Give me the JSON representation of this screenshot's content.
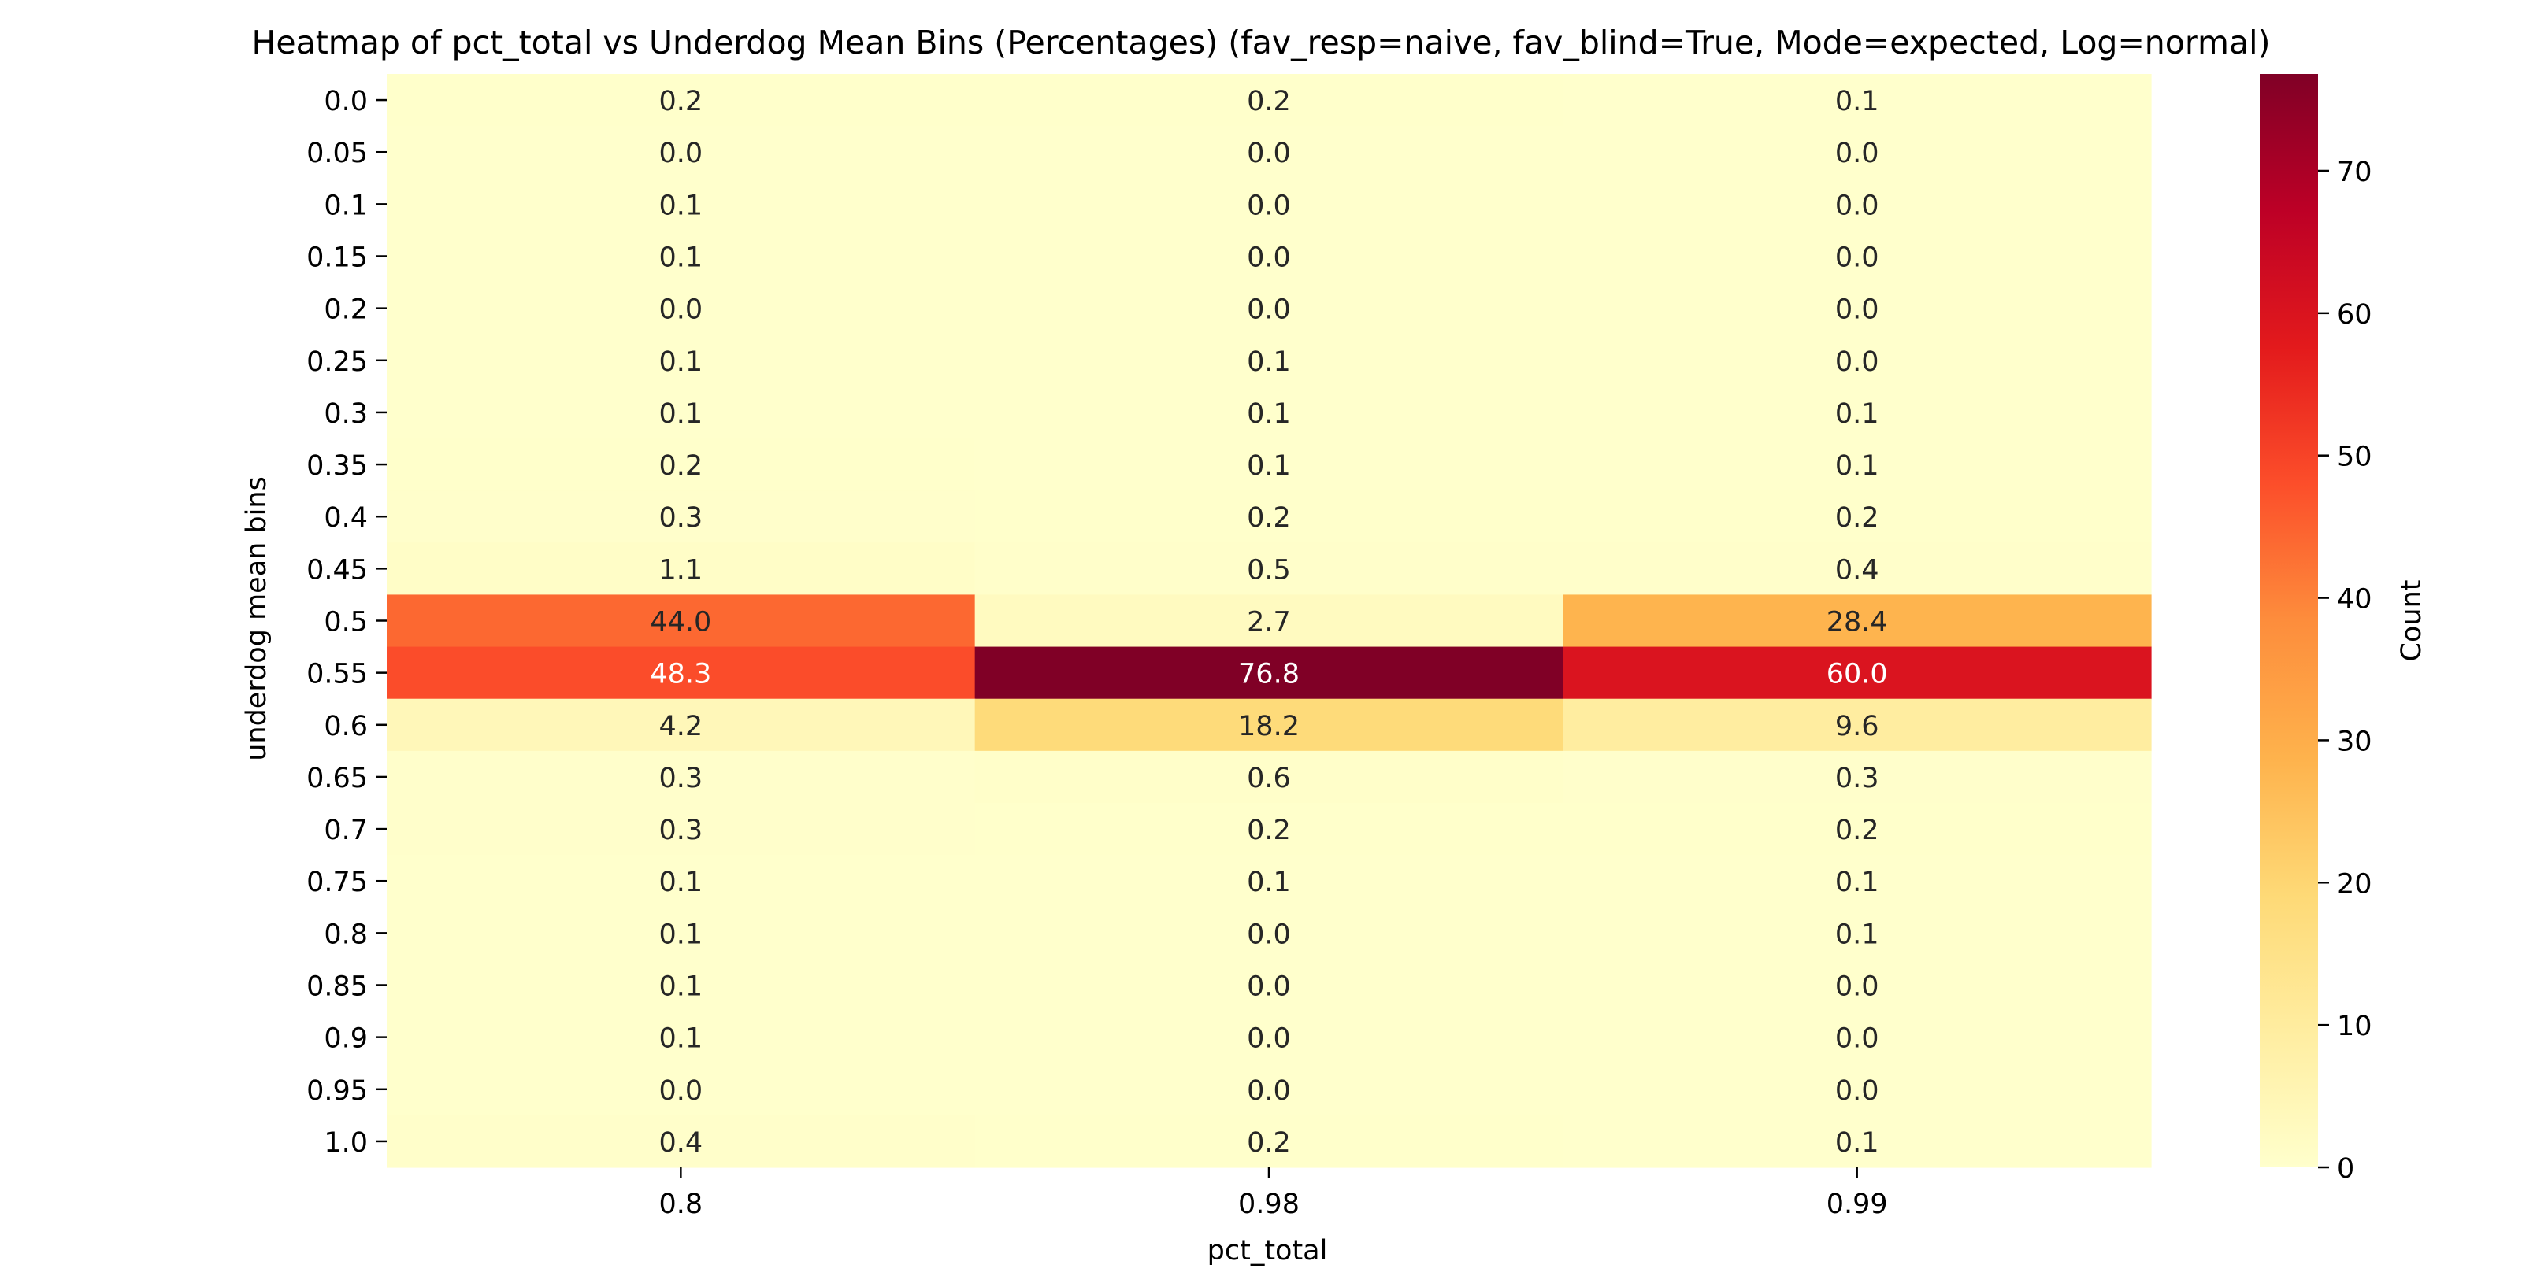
{
  "chart_data": {
    "type": "heatmap",
    "title": "Heatmap of pct_total vs Underdog Mean Bins (Percentages)  (fav_resp=naive, fav_blind=True, Mode=expected, Log=normal)",
    "xlabel": "pct_total",
    "ylabel": "underdog mean bins",
    "x_categories": [
      "0.8",
      "0.98",
      "0.99"
    ],
    "y_categories": [
      "0.0",
      "0.05",
      "0.1",
      "0.15",
      "0.2",
      "0.25",
      "0.3",
      "0.35",
      "0.4",
      "0.45",
      "0.5",
      "0.55",
      "0.6",
      "0.65",
      "0.7",
      "0.75",
      "0.8",
      "0.85",
      "0.9",
      "0.95",
      "1.0"
    ],
    "values": [
      [
        0.2,
        0.2,
        0.1
      ],
      [
        0.0,
        0.0,
        0.0
      ],
      [
        0.1,
        0.0,
        0.0
      ],
      [
        0.1,
        0.0,
        0.0
      ],
      [
        0.0,
        0.0,
        0.0
      ],
      [
        0.1,
        0.1,
        0.0
      ],
      [
        0.1,
        0.1,
        0.1
      ],
      [
        0.2,
        0.1,
        0.1
      ],
      [
        0.3,
        0.2,
        0.2
      ],
      [
        1.1,
        0.5,
        0.4
      ],
      [
        44.0,
        2.7,
        28.4
      ],
      [
        48.3,
        76.8,
        60.0
      ],
      [
        4.2,
        18.2,
        9.6
      ],
      [
        0.3,
        0.6,
        0.3
      ],
      [
        0.3,
        0.2,
        0.2
      ],
      [
        0.1,
        0.1,
        0.1
      ],
      [
        0.1,
        0.0,
        0.1
      ],
      [
        0.1,
        0.0,
        0.0
      ],
      [
        0.1,
        0.0,
        0.0
      ],
      [
        0.0,
        0.0,
        0.0
      ],
      [
        0.4,
        0.2,
        0.1
      ]
    ],
    "value_format": "0.0",
    "colormap": "YlOrRd",
    "colormap_stops": [
      "#ffffcc",
      "#ffeda0",
      "#fed976",
      "#feb24c",
      "#fd8d3c",
      "#fc4e2a",
      "#e31a1c",
      "#bd0026",
      "#800026"
    ],
    "colorbar": {
      "label": "Count",
      "vmin": 0,
      "vmax": 76.8,
      "ticks": [
        "0",
        "10",
        "20",
        "30",
        "40",
        "50",
        "60",
        "70"
      ]
    },
    "annotation_colors": {
      "dark_text": "#262626",
      "light_text": "#ffffff"
    },
    "grid": false
  }
}
